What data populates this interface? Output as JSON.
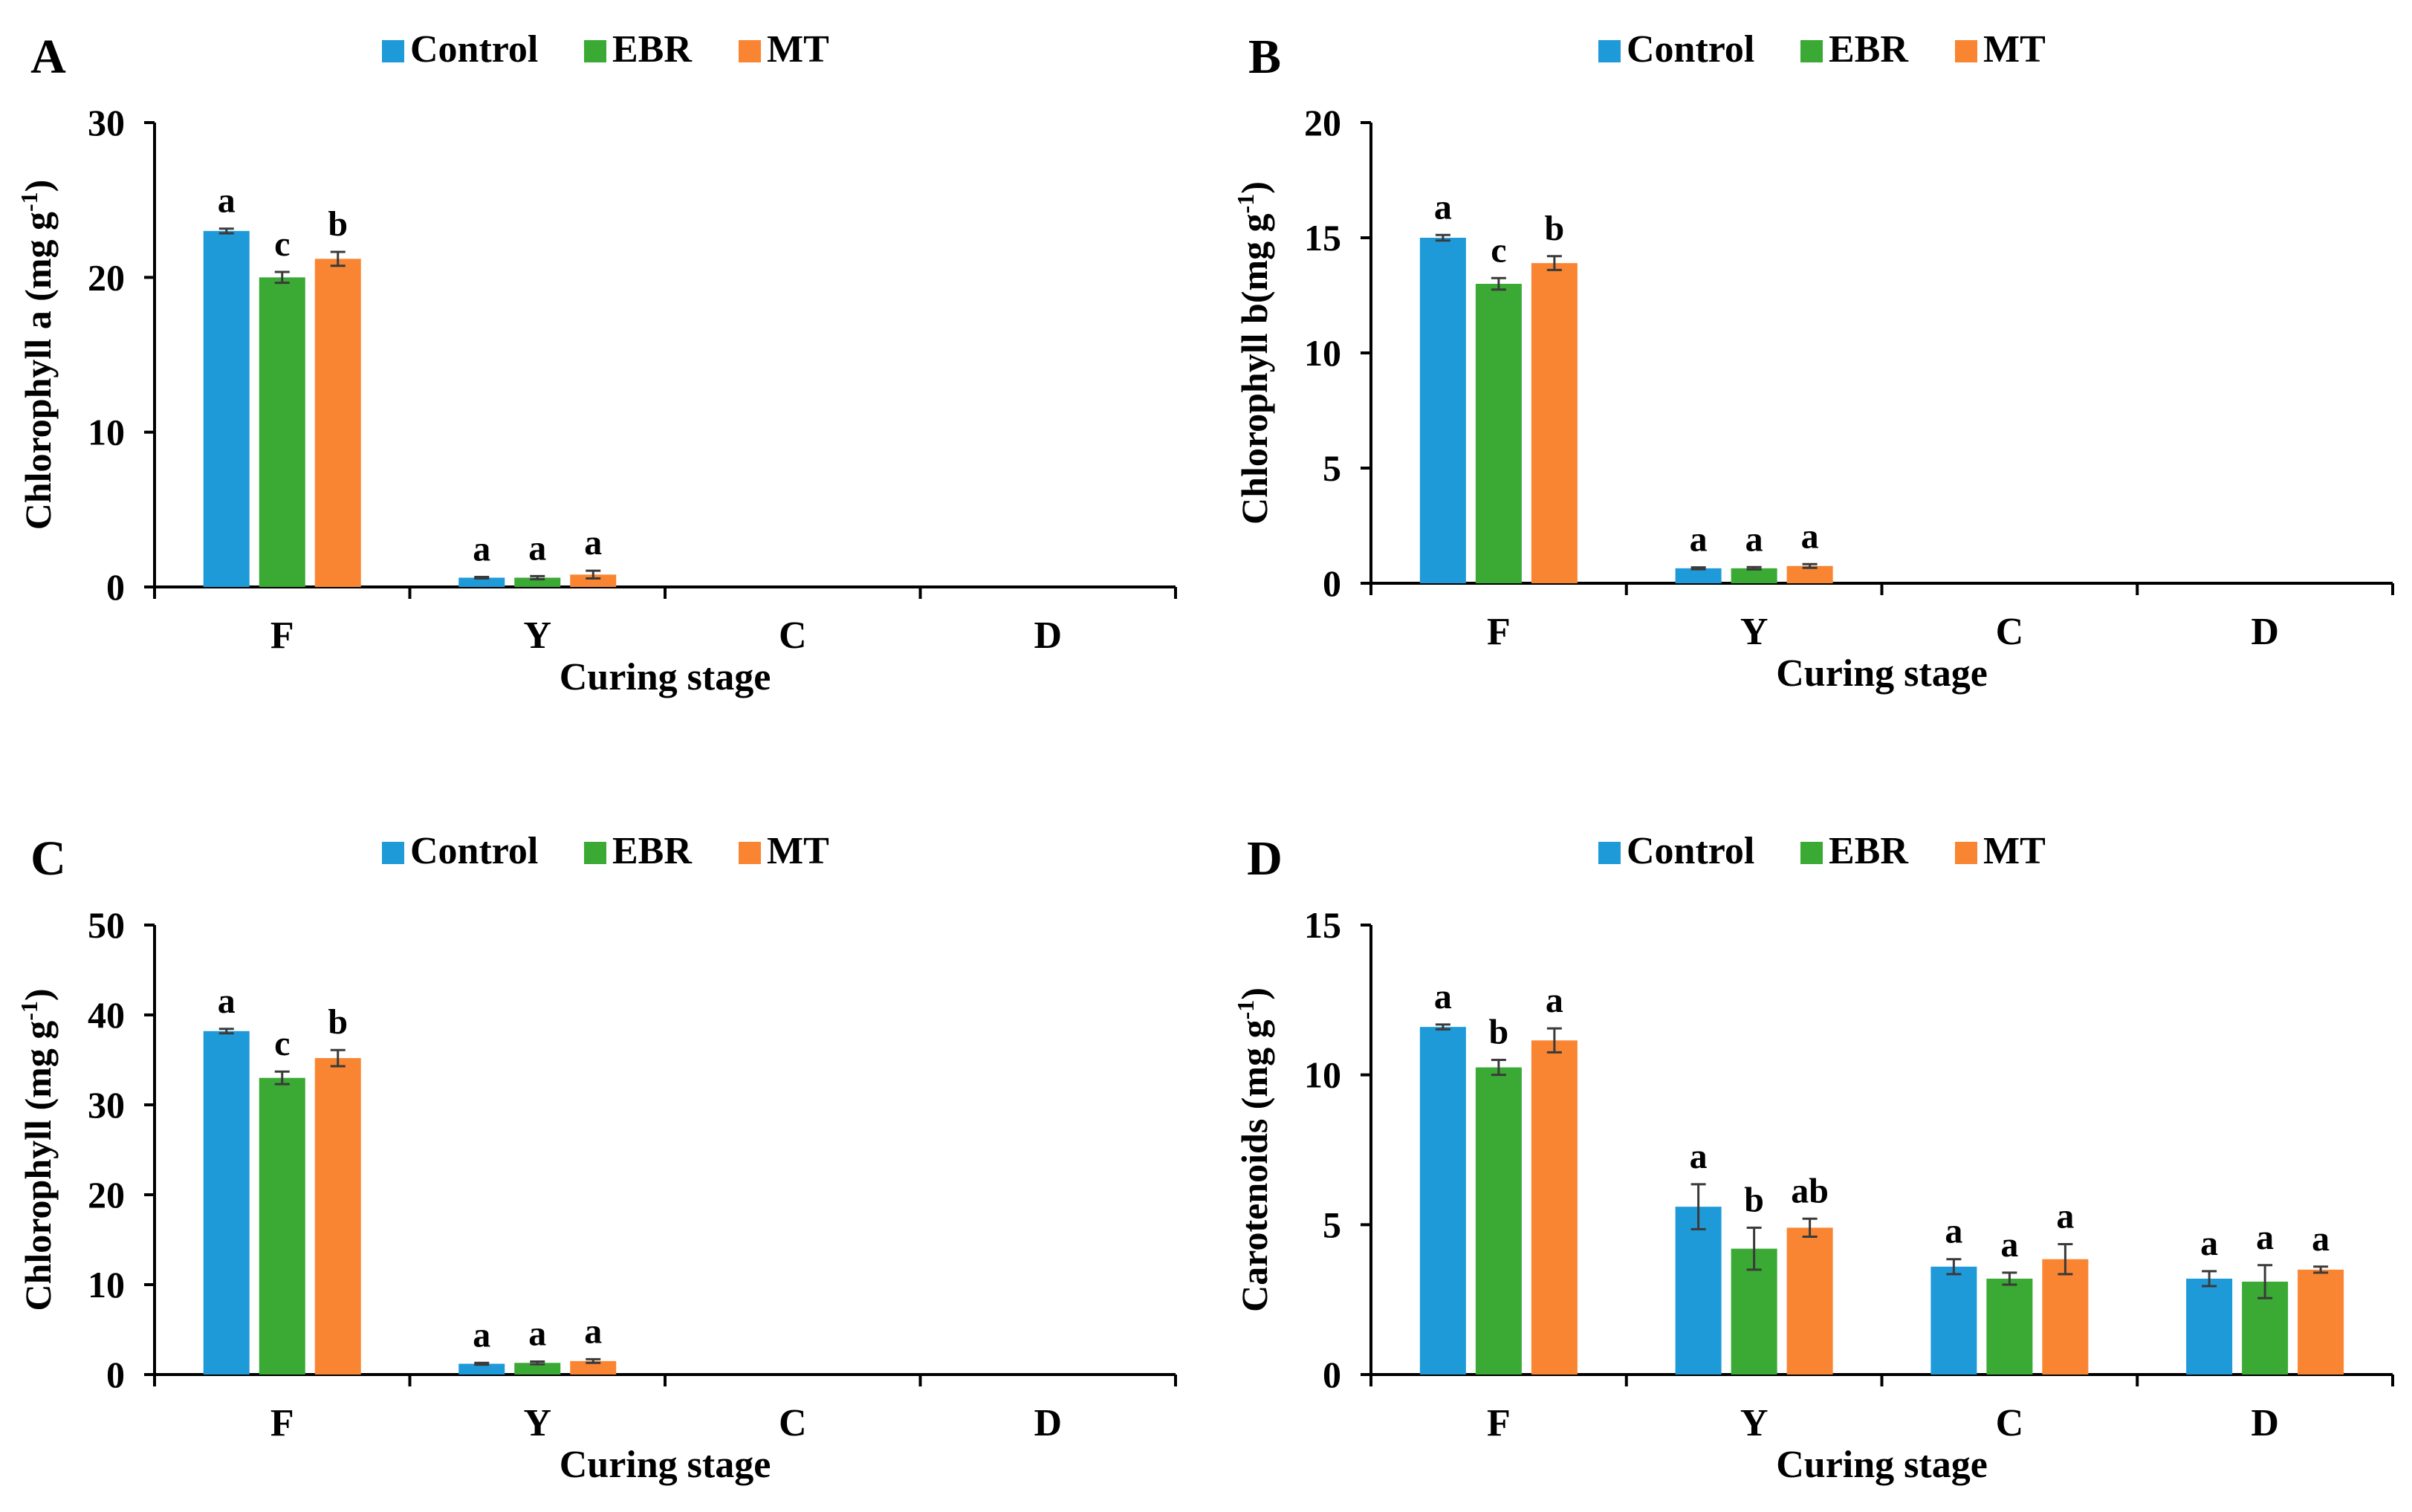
{
  "colors": {
    "Control": "#1f9ad9",
    "EBR": "#3aaa35",
    "MT": "#f98532",
    "errorbar": "#3a3a3a",
    "axis": "#000000"
  },
  "chart_data": [
    {
      "panel": "A",
      "type": "bar",
      "title": "",
      "xlabel": "Curing stage",
      "ylabel_main": "Chlorophyll a (mg g",
      "ylabel_sup": "-1",
      "ylabel_tail": ")",
      "ylim": [
        0,
        30
      ],
      "yticks": [
        0,
        10,
        20,
        30
      ],
      "categories": [
        "F",
        "Y",
        "C",
        "D"
      ],
      "legend": [
        "Control",
        "EBR",
        "MT"
      ],
      "legend_position": "top",
      "series": [
        {
          "name": "Control",
          "values": [
            23.0,
            0.6,
            null,
            null
          ],
          "errors": [
            0.15,
            0.05,
            null,
            null
          ],
          "letters": [
            "a",
            "a",
            null,
            null
          ]
        },
        {
          "name": "EBR",
          "values": [
            20.0,
            0.6,
            null,
            null
          ],
          "errors": [
            0.35,
            0.1,
            null,
            null
          ],
          "letters": [
            "c",
            "a",
            null,
            null
          ]
        },
        {
          "name": "MT",
          "values": [
            21.2,
            0.8,
            null,
            null
          ],
          "errors": [
            0.45,
            0.25,
            null,
            null
          ],
          "letters": [
            "b",
            "a",
            null,
            null
          ]
        }
      ]
    },
    {
      "panel": "B",
      "type": "bar",
      "title": "",
      "xlabel": "Curing stage",
      "ylabel_main": "Chlorophyll  b(mg g",
      "ylabel_sup": "-1",
      "ylabel_tail": ")",
      "ylim": [
        0,
        20
      ],
      "yticks": [
        0,
        5,
        10,
        15,
        20
      ],
      "categories": [
        "F",
        "Y",
        "C",
        "D"
      ],
      "legend": [
        "Control",
        "EBR",
        "MT"
      ],
      "legend_position": "top",
      "series": [
        {
          "name": "Control",
          "values": [
            15.0,
            0.65,
            null,
            null
          ],
          "errors": [
            0.12,
            0.04,
            null,
            null
          ],
          "letters": [
            "a",
            "a",
            null,
            null
          ]
        },
        {
          "name": "EBR",
          "values": [
            13.0,
            0.65,
            null,
            null
          ],
          "errors": [
            0.25,
            0.05,
            null,
            null
          ],
          "letters": [
            "c",
            "a",
            null,
            null
          ]
        },
        {
          "name": "MT",
          "values": [
            13.9,
            0.75,
            null,
            null
          ],
          "errors": [
            0.3,
            0.08,
            null,
            null
          ],
          "letters": [
            "b",
            "a",
            null,
            null
          ]
        }
      ]
    },
    {
      "panel": "C",
      "type": "bar",
      "title": "",
      "xlabel": "Curing stage",
      "ylabel_main": "Chlorophyll  (mg g",
      "ylabel_sup": "-1",
      "ylabel_tail": ")",
      "ylim": [
        0,
        50
      ],
      "yticks": [
        0,
        10,
        20,
        30,
        40,
        50
      ],
      "categories": [
        "F",
        "Y",
        "C",
        "D"
      ],
      "legend": [
        "Control",
        "EBR",
        "MT"
      ],
      "legend_position": "top",
      "series": [
        {
          "name": "Control",
          "values": [
            38.2,
            1.2,
            null,
            null
          ],
          "errors": [
            0.25,
            0.1,
            null,
            null
          ],
          "letters": [
            "a",
            "a",
            null,
            null
          ]
        },
        {
          "name": "EBR",
          "values": [
            33.0,
            1.3,
            null,
            null
          ],
          "errors": [
            0.7,
            0.15,
            null,
            null
          ],
          "letters": [
            "c",
            "a",
            null,
            null
          ]
        },
        {
          "name": "MT",
          "values": [
            35.2,
            1.5,
            null,
            null
          ],
          "errors": [
            0.9,
            0.2,
            null,
            null
          ],
          "letters": [
            "b",
            "a",
            null,
            null
          ]
        }
      ]
    },
    {
      "panel": "D",
      "type": "bar",
      "title": "",
      "xlabel": "Curing stage",
      "ylabel_main": "Carotenoids  (mg g",
      "ylabel_sup": "-1",
      "ylabel_tail": ")",
      "ylim": [
        0,
        15
      ],
      "yticks": [
        0,
        5,
        10,
        15
      ],
      "categories": [
        "F",
        "Y",
        "C",
        "D"
      ],
      "legend": [
        "Control",
        "EBR",
        "MT"
      ],
      "legend_position": "top",
      "series": [
        {
          "name": "Control",
          "values": [
            11.6,
            5.6,
            3.6,
            3.2
          ],
          "errors": [
            0.08,
            0.75,
            0.25,
            0.25
          ],
          "letters": [
            "a",
            "a",
            "a",
            "a"
          ]
        },
        {
          "name": "EBR",
          "values": [
            10.25,
            4.2,
            3.2,
            3.1
          ],
          "errors": [
            0.25,
            0.7,
            0.2,
            0.55
          ],
          "letters": [
            "b",
            "b",
            "a",
            "a"
          ]
        },
        {
          "name": "MT",
          "values": [
            11.15,
            4.9,
            3.85,
            3.5
          ],
          "errors": [
            0.4,
            0.3,
            0.5,
            0.1
          ],
          "letters": [
            "a",
            "ab",
            "a",
            "a"
          ]
        }
      ]
    }
  ]
}
